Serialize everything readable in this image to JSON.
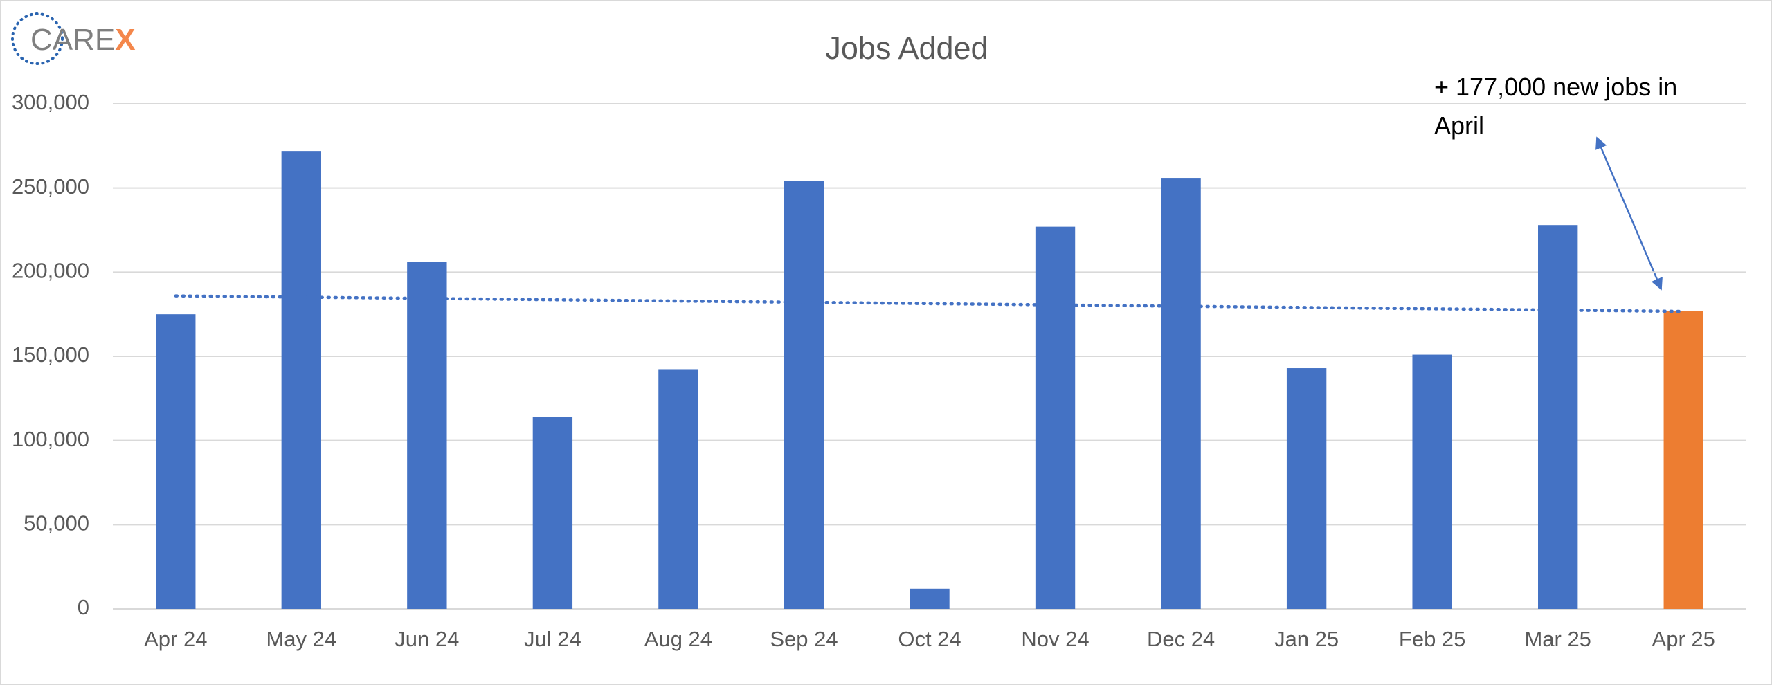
{
  "logo": {
    "text": "CARE",
    "accent": "X"
  },
  "chart_data": {
    "type": "bar",
    "title": "Jobs Added",
    "categories": [
      "Apr 24",
      "May 24",
      "Jun 24",
      "Jul 24",
      "Aug 24",
      "Sep 24",
      "Oct 24",
      "Nov 24",
      "Dec 24",
      "Jan 25",
      "Feb 25",
      "Mar 25",
      "Apr 25"
    ],
    "values": [
      175000,
      272000,
      206000,
      114000,
      142000,
      254000,
      12000,
      227000,
      256000,
      143000,
      151000,
      228000,
      177000
    ],
    "colors": [
      "#4472c4",
      "#4472c4",
      "#4472c4",
      "#4472c4",
      "#4472c4",
      "#4472c4",
      "#4472c4",
      "#4472c4",
      "#4472c4",
      "#4472c4",
      "#4472c4",
      "#4472c4",
      "#ed7d31"
    ],
    "trendline": {
      "type": "linear",
      "color": "#4472c4"
    },
    "ylim": [
      0,
      300000
    ],
    "yticks": [
      0,
      {
        "value": 50000,
        "label": "50,000"
      },
      {
        "value": 100000,
        "label": "100,000"
      },
      {
        "value": 150000,
        "label": "150,000"
      },
      {
        "value": 200000,
        "label": "200,000"
      },
      {
        "value": 250000,
        "label": "250,000"
      },
      {
        "value": 300000,
        "label": "300,000"
      }
    ],
    "grid": true,
    "annotation": "+ 177,000 new jobs in April"
  }
}
